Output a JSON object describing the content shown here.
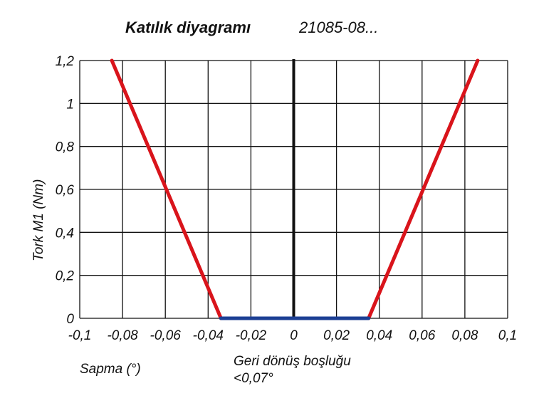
{
  "chart_data": {
    "type": "line",
    "title": "Katılık diyagramı",
    "subtitle": "21085-08...",
    "xlabel": "Sapma (°)",
    "ylabel": "Tork M1 (Nm)",
    "annotation_line1": "Geri dönüş boşluğu",
    "annotation_line2": "<0,07°",
    "xlim": [
      -0.1,
      0.1
    ],
    "ylim": [
      0,
      1.2
    ],
    "x_ticks": [
      -0.1,
      -0.08,
      -0.06,
      -0.04,
      -0.02,
      0,
      0.02,
      0.04,
      0.06,
      0.08,
      0.1
    ],
    "x_tick_labels": [
      "-0,1",
      "-0,08",
      "-0,06",
      "-0,04",
      "-0,02",
      "0",
      "0,02",
      "0,04",
      "0,06",
      "0,08",
      "0,1"
    ],
    "y_ticks": [
      0,
      0.2,
      0.4,
      0.6,
      0.8,
      1,
      1.2
    ],
    "y_tick_labels": [
      "0",
      "0,2",
      "0,4",
      "0,6",
      "0,8",
      "1",
      "1,2"
    ],
    "grid": true,
    "series": [
      {
        "id": "left-stiffness",
        "color": "#d9141b",
        "x": [
          -0.034,
          -0.085
        ],
        "y": [
          0,
          1.2
        ]
      },
      {
        "id": "right-stiffness",
        "color": "#d9141b",
        "x": [
          0.035,
          0.086
        ],
        "y": [
          0,
          1.2
        ]
      },
      {
        "id": "backlash",
        "color": "#1c3f94",
        "x": [
          -0.034,
          0.035
        ],
        "y": [
          0,
          0
        ]
      }
    ],
    "zero_axis_color": "#111111"
  }
}
